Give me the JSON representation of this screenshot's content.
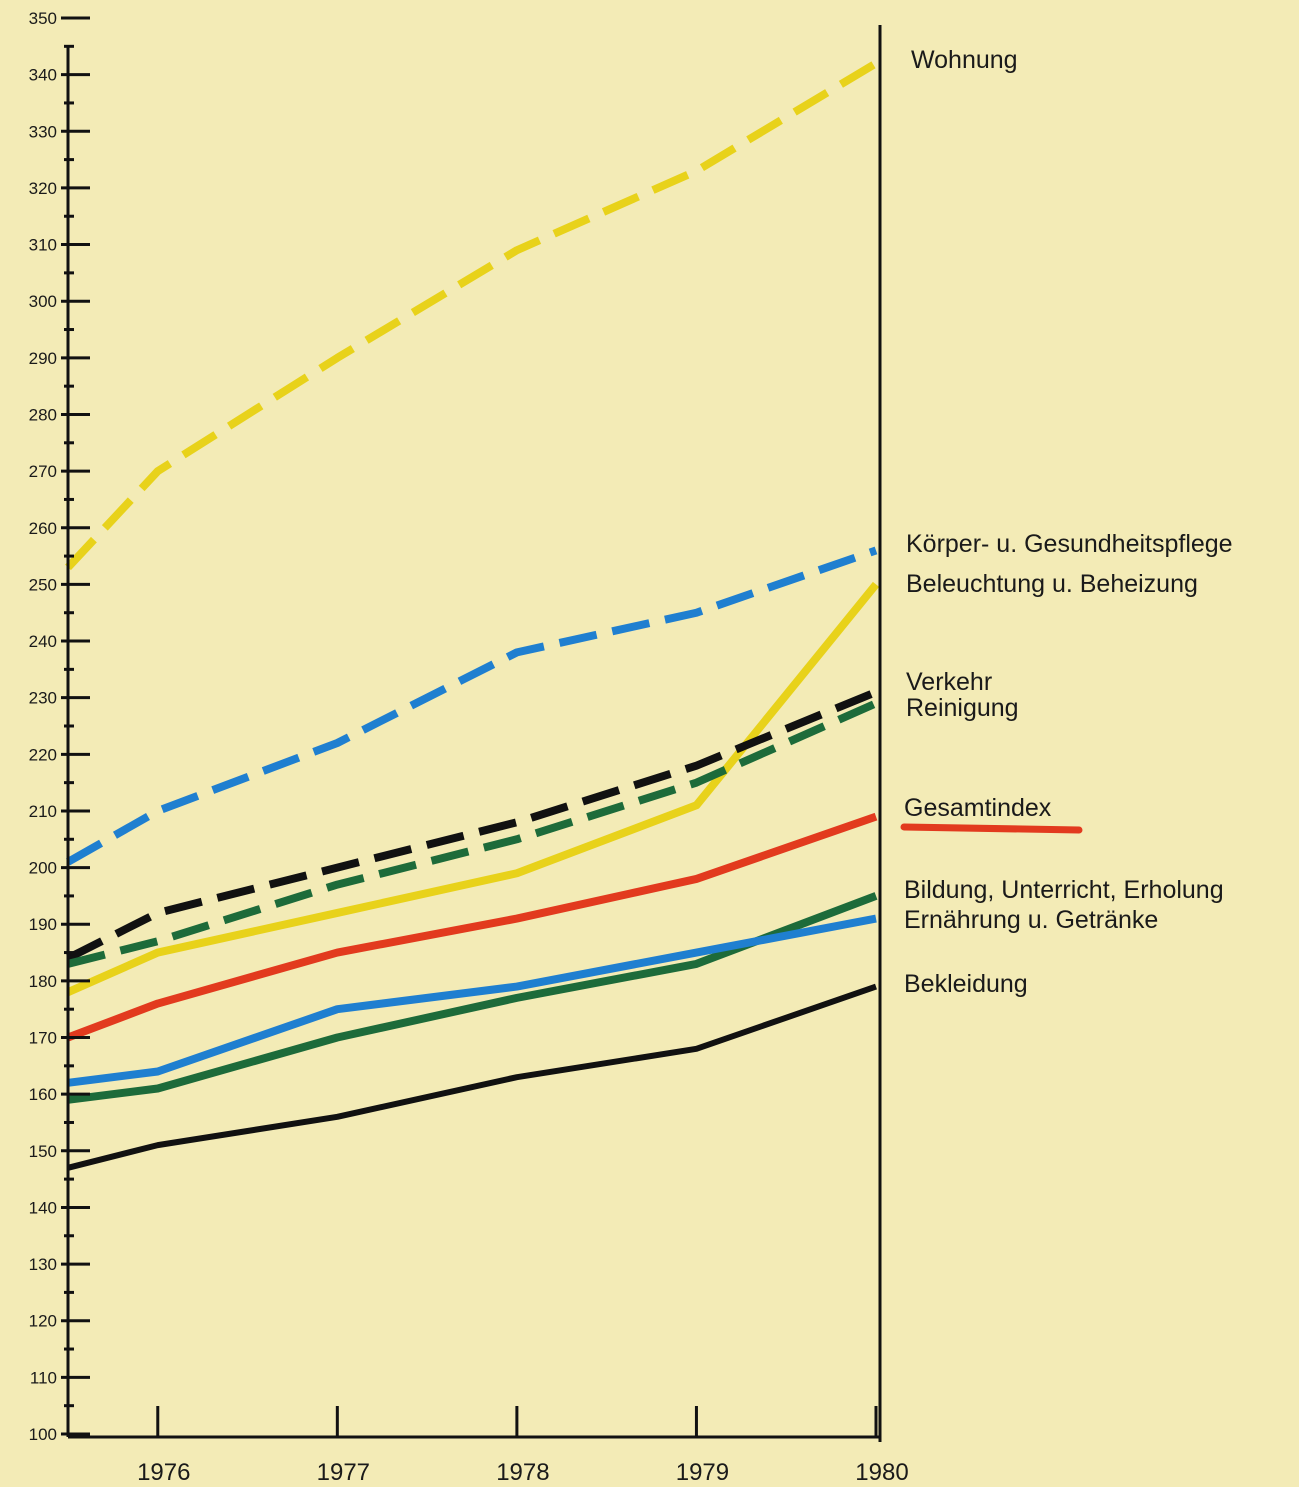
{
  "chart_data": {
    "type": "line",
    "x": [
      1975.5,
      1976,
      1977,
      1978,
      1979,
      1980
    ],
    "x_ticks": [
      1976,
      1977,
      1978,
      1979,
      1980
    ],
    "xlim": [
      1975.5,
      1980
    ],
    "ylim": [
      100,
      350
    ],
    "y_label_step": 10,
    "y_minor_step": 5,
    "grid": false,
    "legend": "right-side labels",
    "series": [
      {
        "name": "Wohnung",
        "color": "#e8d21a",
        "dash": true,
        "values": [
          253,
          270,
          290,
          309,
          323,
          342
        ]
      },
      {
        "name": "Körper- u. Gesundheitspflege",
        "color": "#1f7fd0",
        "dash": true,
        "values": [
          201,
          210,
          222,
          238,
          245,
          256
        ]
      },
      {
        "name": "Beleuchtung u. Beheizung",
        "color": "#e8d21a",
        "dash": false,
        "values": [
          178,
          185,
          192,
          199,
          211,
          250
        ]
      },
      {
        "name": "Verkehr",
        "color": "#111111",
        "dash": true,
        "values": [
          184,
          192,
          200,
          208,
          218,
          231
        ]
      },
      {
        "name": "Reinigung",
        "color": "#1d6b3a",
        "dash": true,
        "values": [
          183,
          187,
          197,
          205,
          215,
          229
        ]
      },
      {
        "name": "Gesamtindex",
        "color": "#e23a1e",
        "dash": false,
        "values": [
          170,
          176,
          185,
          191,
          198,
          209
        ]
      },
      {
        "name": "Bildung, Unterricht, Erholung",
        "color": "#1d6b3a",
        "dash": false,
        "values": [
          159,
          161,
          170,
          177,
          183,
          195
        ]
      },
      {
        "name": "Ernährung u. Getränke",
        "color": "#1f7fd0",
        "dash": false,
        "values": [
          162,
          164,
          175,
          179,
          185,
          191
        ]
      },
      {
        "name": "Bekleidung",
        "color": "#111111",
        "dash": false,
        "values": [
          147,
          151,
          156,
          163,
          168,
          179
        ]
      }
    ]
  }
}
